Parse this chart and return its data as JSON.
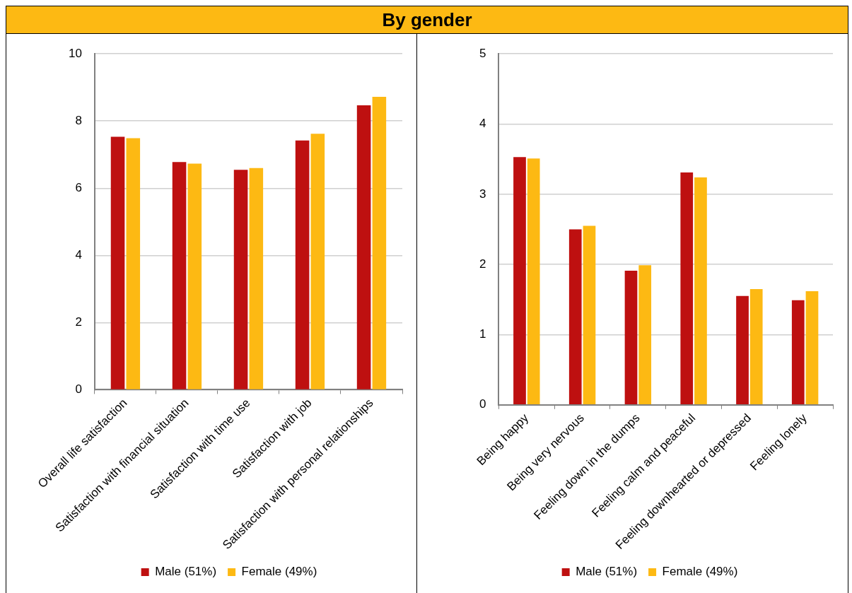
{
  "chart_data": [
    {
      "type": "bar",
      "title": "By gender",
      "categories": [
        "Overall life satisfaction",
        "Satisfaction with financial situation",
        "Satisfaction with time use",
        "Satisfaction with job",
        "Satisfaction with personal relationships"
      ],
      "series": [
        {
          "name": "Male (51%)",
          "color": "#be1010",
          "values": [
            7.53,
            6.78,
            6.55,
            7.42,
            8.47
          ]
        },
        {
          "name": "Female (49%)",
          "color": "#fdb913",
          "values": [
            7.49,
            6.73,
            6.6,
            7.62,
            8.72
          ]
        }
      ],
      "ylim": [
        0,
        10
      ],
      "yticks": [
        0,
        2,
        4,
        6,
        8,
        10
      ],
      "grid": "y",
      "legend": "bottom"
    },
    {
      "type": "bar",
      "categories": [
        "Being happy",
        "Being very nervous",
        "Feeling down in the dumps",
        "Feeling calm and peaceful",
        "Feeling downhearted or depressed",
        "Feeling lonely"
      ],
      "series": [
        {
          "name": "Male (51%)",
          "color": "#be1010",
          "values": [
            3.53,
            2.5,
            1.91,
            3.31,
            1.55,
            1.49
          ]
        },
        {
          "name": "Female (49%)",
          "color": "#fdb913",
          "values": [
            3.51,
            2.55,
            1.99,
            3.24,
            1.65,
            1.62
          ]
        }
      ],
      "ylim": [
        0,
        5
      ],
      "yticks": [
        0,
        1,
        2,
        3,
        4,
        5
      ],
      "grid": "y",
      "legend": "bottom"
    }
  ]
}
